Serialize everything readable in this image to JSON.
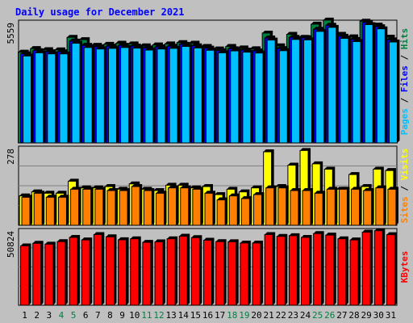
{
  "chart_data": {
    "type": "bar",
    "title": "Daily usage for December 2021",
    "categories": [
      "1",
      "2",
      "3",
      "4",
      "5",
      "6",
      "7",
      "8",
      "9",
      "10",
      "11",
      "12",
      "13",
      "14",
      "15",
      "16",
      "17",
      "18",
      "19",
      "20",
      "21",
      "22",
      "23",
      "24",
      "25",
      "26",
      "27",
      "28",
      "29",
      "30",
      "31"
    ],
    "weekend_days": [
      "4",
      "5",
      "11",
      "12",
      "18",
      "19",
      "25",
      "26"
    ],
    "panels": [
      {
        "name": "pages-files-hits",
        "axis_max_label": "5559",
        "ylim": [
          0,
          5559
        ],
        "legend": [
          {
            "name": "Pages",
            "color": "#00c0ff"
          },
          {
            "name": "Files",
            "color": "#0000ff"
          },
          {
            "name": "Hits",
            "color": "#008040"
          }
        ],
        "series": [
          {
            "name": "Hits",
            "color": "#008040",
            "values": [
              4280,
              4450,
              4400,
              4390,
              4980,
              4870,
              4600,
              4650,
              4700,
              4670,
              4580,
              4620,
              4670,
              4730,
              4700,
              4550,
              4430,
              4550,
              4480,
              4440,
              5180,
              4580,
              5120,
              4980,
              5600,
              5790,
              5120,
              5000,
              5740,
              5560,
              4990
            ]
          },
          {
            "name": "Files",
            "color": "#0000ff",
            "values": [
              4200,
              4350,
              4300,
              4300,
              4800,
              4600,
              4530,
              4560,
              4600,
              4570,
              4480,
              4530,
              4560,
              4650,
              4580,
              4470,
              4350,
              4440,
              4380,
              4340,
              4950,
              4450,
              4980,
              4960,
              5360,
              5550,
              5030,
              4880,
              5680,
              5480,
              4860
            ]
          },
          {
            "name": "Pages",
            "color": "#00c0ff",
            "values": [
              4100,
              4250,
              4200,
              4200,
              4700,
              4500,
              4430,
              4460,
              4500,
              4470,
              4380,
              4430,
              4460,
              4550,
              4480,
              4370,
              4250,
              4340,
              4280,
              4240,
              4850,
              4350,
              4880,
              4860,
              5260,
              5450,
              4930,
              4780,
              5580,
              5380,
              4760
            ]
          }
        ]
      },
      {
        "name": "sites-visits",
        "axis_max_label": "278",
        "ylim": [
          0,
          278
        ],
        "legend": [
          {
            "name": "Sites",
            "color": "#ff8000"
          },
          {
            "name": "Visits",
            "color": "#ffff00"
          }
        ],
        "series": [
          {
            "name": "Visits",
            "color": "#ffff00",
            "values": [
              110,
              125,
              120,
              120,
              165,
              140,
              140,
              145,
              135,
              155,
              135,
              130,
              150,
              150,
              140,
              145,
              115,
              135,
              125,
              140,
              275,
              145,
              225,
              280,
              230,
              210,
              135,
              190,
              145,
              210,
              205
            ]
          },
          {
            "name": "Sites",
            "color": "#ff8000",
            "values": [
              105,
              120,
              105,
              105,
              135,
              135,
              135,
              130,
              130,
              145,
              130,
              120,
              140,
              140,
              135,
              120,
              95,
              110,
              100,
              115,
              140,
              140,
              130,
              130,
              120,
              135,
              135,
              135,
              130,
              140,
              135
            ]
          }
        ]
      },
      {
        "name": "kbytes",
        "axis_max_label": "50824",
        "ylim": [
          0,
          50824
        ],
        "legend": [
          {
            "name": "KBytes",
            "color": "#ff0000"
          }
        ],
        "series": [
          {
            "name": "KBytes",
            "color": "#ff0000",
            "values": [
              42000,
              43800,
              43200,
              45000,
              48000,
              46200,
              50000,
              48400,
              46300,
              47000,
              44500,
              44800,
              47000,
              48800,
              47800,
              46000,
              45000,
              44900,
              44000,
              44000,
              50000,
              48700,
              49200,
              48000,
              50700,
              49600,
              47000,
              46200,
              51700,
              52700,
              49900
            ]
          }
        ]
      }
    ]
  }
}
